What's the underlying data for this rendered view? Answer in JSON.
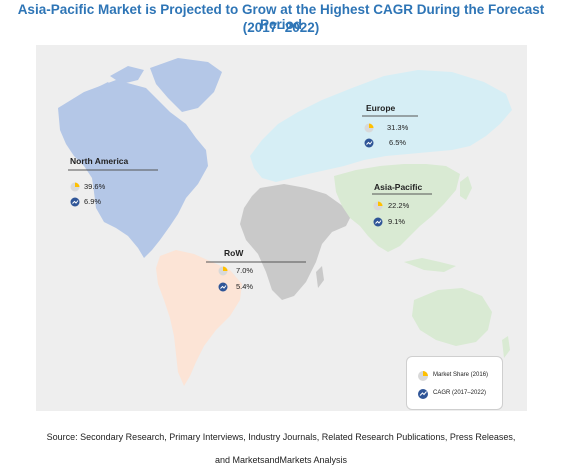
{
  "title": {
    "line1": "Asia-Pacific Market is Projected to Grow at the Highest CAGR During the Forecast Period",
    "line2": "(2017–2022)"
  },
  "regions": {
    "north_america": {
      "name": "North America",
      "market_share": "39.6%",
      "cagr": "6.9%",
      "color": "#b4c7e7"
    },
    "europe": {
      "name": "Europe",
      "market_share": "31.3%",
      "cagr": "6.5%",
      "color": "#d6eef5"
    },
    "asia_pacific": {
      "name": "Asia-Pacific",
      "market_share": "22.2%",
      "cagr": "9.1%",
      "color": "#d9ead3"
    },
    "row": {
      "name": "RoW",
      "market_share": "7.0%",
      "cagr": "5.4%",
      "color": "#fce4d6"
    }
  },
  "legend": {
    "market_share_label": "Market Share (2016)",
    "cagr_label": "CAGR (2017–2022)"
  },
  "colors": {
    "title": "#2e75b6",
    "pie_slice": "#ffc000",
    "pie_base": "#d9d9d9",
    "cagr_badge": "#2f5597",
    "rest_of_world_land": "#c9c9c9"
  },
  "source": {
    "line1": "Source: Secondary Research, Primary Interviews, Industry Journals, Related Research Publications, Press Releases,",
    "line2": "and MarketsandMarkets Analysis"
  }
}
